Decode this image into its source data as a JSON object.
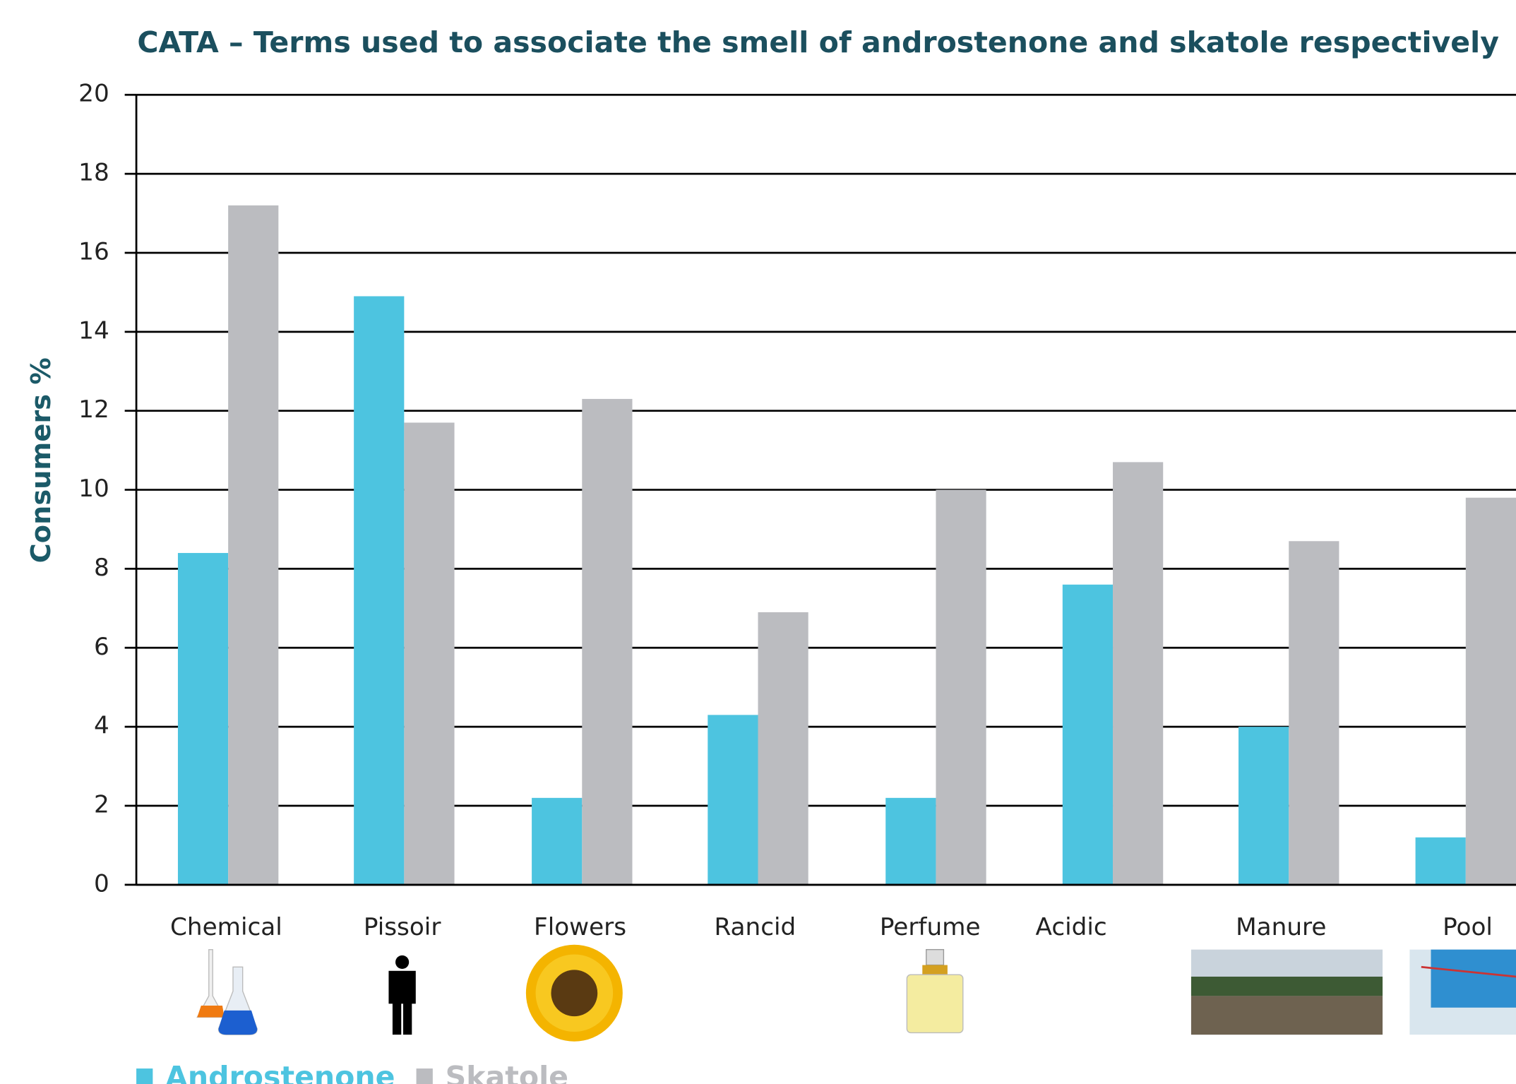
{
  "chart_data": {
    "type": "bar",
    "title": "CATA – Terms used to associate the smell of androstenone and skatole respectively",
    "y_label": "Consumers %",
    "categories": [
      "Chemical",
      "Pissoir",
      "Flowers",
      "Rancid",
      "Perfume",
      "Acidic",
      "Manure",
      "Pool"
    ],
    "series": [
      {
        "name": "Androstenone",
        "color": "#4dc4e0",
        "values": [
          8.4,
          14.9,
          2.2,
          4.3,
          2.2,
          7.6,
          4.0,
          1.2
        ]
      },
      {
        "name": "Skatole",
        "color": "#bbbcc0",
        "values": [
          17.2,
          11.7,
          12.3,
          6.9,
          10.0,
          10.7,
          8.7,
          9.8
        ]
      }
    ],
    "ylim": [
      0,
      20
    ],
    "yticks": [
      0,
      2,
      4,
      6,
      8,
      10,
      12,
      14,
      16,
      18,
      20
    ],
    "grid": true,
    "legend": "bottom"
  }
}
